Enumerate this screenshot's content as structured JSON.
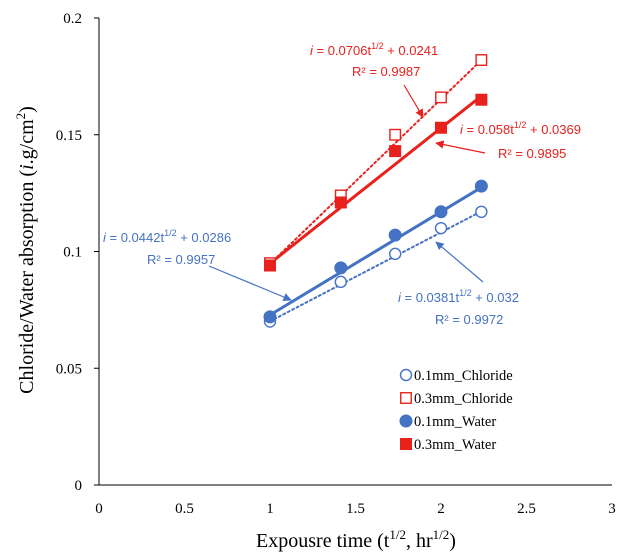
{
  "chart_data": {
    "type": "scatter",
    "title": "",
    "xlabel": {
      "base": "Expousre time  (t",
      "sup1": "1/2",
      "mid": ", hr",
      "sup2": "1/2",
      "end": ")"
    },
    "ylabel": {
      "pre": "Chloride/Water absorption (",
      "italic": "i",
      "mid": ".g/cm",
      "sup": "2",
      "end": ")"
    },
    "xlim": [
      0,
      3
    ],
    "ylim": [
      0,
      0.2
    ],
    "xticks": [
      "0",
      "0.5",
      "1",
      "1.5",
      "2",
      "2.5",
      "3"
    ],
    "yticks": [
      "0",
      "0.05",
      "0.1",
      "0.15",
      "0.2"
    ],
    "grid": false,
    "legend_position": "bottom-right",
    "series": [
      {
        "name": "0.1mm_Chloride",
        "color": "#4472c4",
        "marker": "circle-open",
        "line": "dotted",
        "x": [
          1.0,
          1.414,
          1.732,
          2.0,
          2.236
        ],
        "y": [
          0.07,
          0.087,
          0.099,
          0.11,
          0.117
        ],
        "fit": {
          "slope": 0.0381,
          "intercept": 0.032
        }
      },
      {
        "name": "0.3mm_Chloride",
        "color": "#e8211c",
        "marker": "square-open",
        "line": "dotted",
        "x": [
          1.0,
          1.414,
          1.732,
          2.0,
          2.236
        ],
        "y": [
          0.095,
          0.124,
          0.15,
          0.166,
          0.182
        ],
        "fit": {
          "slope": 0.0706,
          "intercept": 0.0241
        }
      },
      {
        "name": "0.1mm_Water",
        "color": "#4472c4",
        "marker": "circle-filled",
        "line": "solid",
        "x": [
          1.0,
          1.414,
          1.732,
          2.0,
          2.236
        ],
        "y": [
          0.072,
          0.093,
          0.107,
          0.117,
          0.128
        ],
        "fit": {
          "slope": 0.0442,
          "intercept": 0.0286
        }
      },
      {
        "name": "0.3mm_Water",
        "color": "#e8211c",
        "marker": "square-filled",
        "line": "solid",
        "x": [
          1.0,
          1.414,
          1.732,
          2.0,
          2.236
        ],
        "y": [
          0.094,
          0.121,
          0.143,
          0.153,
          0.165
        ],
        "fit": {
          "slope": 0.058,
          "intercept": 0.0369
        }
      }
    ],
    "annotations": [
      {
        "target": "0.3mm_Chloride",
        "color": "#e8211c",
        "var": "i",
        "eq_a": " = 0.0706t",
        "eq_sup": "1/2",
        "eq_b": " + 0.0241",
        "r2": "R² = 0.9987"
      },
      {
        "target": "0.3mm_Water",
        "color": "#e8211c",
        "var": "i",
        "eq_a": " = 0.058t",
        "eq_sup": "1/2",
        "eq_b": " + 0.0369",
        "r2": "R² = 0.9895"
      },
      {
        "target": "0.1mm_Water",
        "color": "#4472c4",
        "var": "i",
        "eq_a": " = 0.0442t",
        "eq_sup": "1/2",
        "eq_b": " + 0.0286",
        "r2": "R² = 0.9957"
      },
      {
        "target": "0.1mm_Chloride",
        "color": "#4472c4",
        "var": "i",
        "eq_a": " = 0.0381t",
        "eq_sup": "1/2",
        "eq_b": " + 0.032",
        "r2": "R² = 0.9972"
      }
    ]
  }
}
